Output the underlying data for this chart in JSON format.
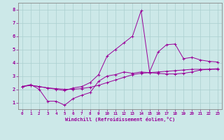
{
  "xlabel": "Windchill (Refroidissement éolien,°C)",
  "bg_color": "#cce8e8",
  "line_color": "#990099",
  "xlim": [
    -0.5,
    23.5
  ],
  "ylim": [
    0.5,
    8.5
  ],
  "xticks": [
    0,
    1,
    2,
    3,
    4,
    5,
    6,
    7,
    8,
    9,
    10,
    11,
    12,
    13,
    14,
    15,
    16,
    17,
    18,
    19,
    20,
    21,
    22,
    23
  ],
  "yticks": [
    1,
    2,
    3,
    4,
    5,
    6,
    7,
    8
  ],
  "series1_x": [
    0,
    1,
    2,
    3,
    4,
    5,
    6,
    7,
    8,
    9,
    10,
    11,
    12,
    13,
    14,
    15,
    16,
    17,
    18,
    19,
    20,
    21,
    22,
    23
  ],
  "series1_y": [
    2.2,
    2.35,
    2.0,
    1.1,
    1.1,
    0.8,
    1.3,
    1.55,
    1.75,
    2.6,
    3.0,
    3.1,
    3.3,
    3.2,
    3.3,
    3.25,
    3.2,
    3.15,
    3.15,
    3.2,
    3.3,
    3.45,
    3.5,
    3.55
  ],
  "series2_x": [
    0,
    1,
    2,
    3,
    4,
    5,
    6,
    7,
    8,
    9,
    10,
    11,
    12,
    13,
    14,
    15,
    16,
    17,
    18,
    19,
    20,
    21,
    22,
    23
  ],
  "series2_y": [
    2.2,
    2.3,
    2.2,
    2.1,
    2.05,
    2.0,
    2.0,
    2.05,
    2.15,
    2.3,
    2.5,
    2.7,
    2.9,
    3.1,
    3.2,
    3.25,
    3.3,
    3.35,
    3.4,
    3.45,
    3.5,
    3.5,
    3.5,
    3.5
  ],
  "series3_x": [
    0,
    1,
    2,
    3,
    4,
    5,
    6,
    7,
    8,
    9,
    10,
    11,
    12,
    13,
    14,
    15,
    16,
    17,
    18,
    19,
    20,
    21,
    22,
    23
  ],
  "series3_y": [
    2.2,
    2.3,
    2.2,
    2.1,
    2.0,
    1.9,
    2.1,
    2.2,
    2.5,
    3.1,
    4.5,
    5.0,
    5.5,
    6.0,
    7.9,
    3.3,
    4.8,
    5.35,
    5.4,
    4.3,
    4.4,
    4.2,
    4.1,
    4.05
  ],
  "grid_color": "#aacfcf",
  "marker": "+"
}
